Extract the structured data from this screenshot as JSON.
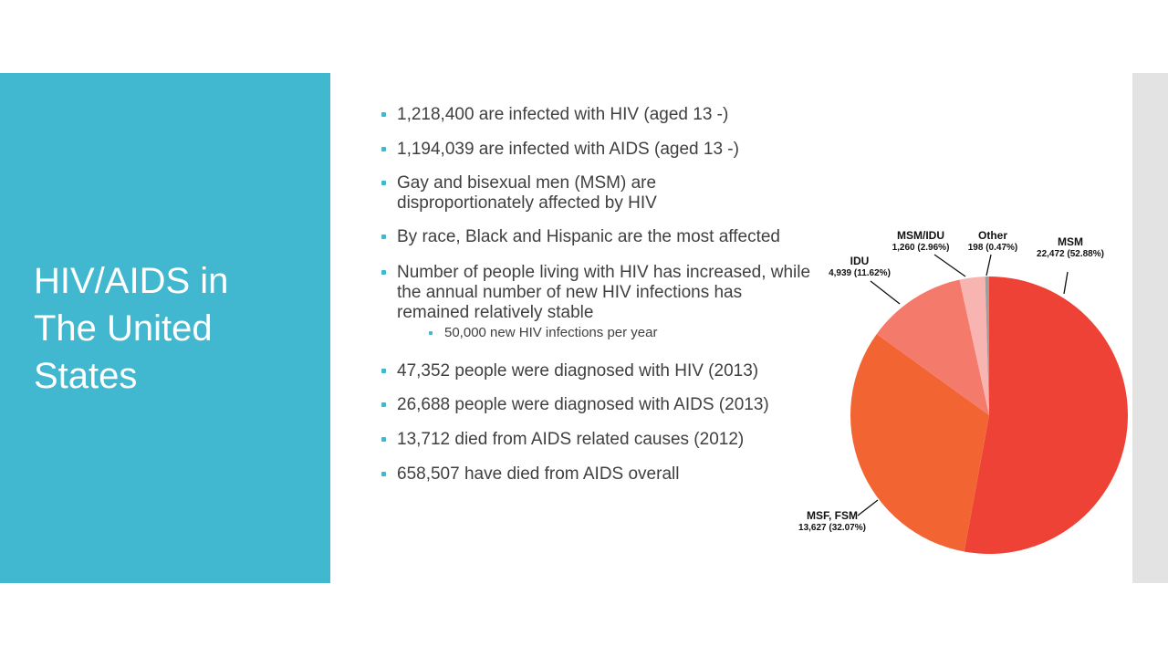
{
  "slide": {
    "title_lines": [
      "HIV/AIDS in",
      "The United",
      "States"
    ]
  },
  "bullets": [
    "1,218,400 are infected with HIV (aged 13 -)",
    "1,194,039 are infected with AIDS (aged 13 -)",
    "Gay and bisexual men (MSM) are disproportionately affected by HIV",
    "By race, Black and Hispanic are the most affected",
    "Number of people living with HIV has increased, while the annual number of new HIV infections has remained relatively stable",
    "47,352 people were diagnosed with HIV (2013)",
    "26,688 people were diagnosed with AIDS (2013)",
    "13,712 died from AIDS related causes (2012)",
    "658,507 have died from AIDS overall"
  ],
  "sub_bullet": "50,000 new HIV infections per year",
  "colors": {
    "accent": "#41b8d0",
    "strip": "#e3e3e3"
  },
  "chart_data": {
    "type": "pie",
    "title": "",
    "slices": [
      {
        "name": "MSM",
        "value": 22472,
        "percent_label": "22,472 (52.88%)",
        "color": "#ef4237"
      },
      {
        "name": "MSF, FSM",
        "value": 13627,
        "percent_label": "13,627 (32.07%)",
        "color": "#f26532"
      },
      {
        "name": "IDU",
        "value": 4939,
        "percent_label": "4,939 (11.62%)",
        "color": "#f47a6c"
      },
      {
        "name": "MSM/IDU",
        "value": 1260,
        "percent_label": "1,260 (2.96%)",
        "color": "#f7b4b0"
      },
      {
        "name": "Other",
        "value": 198,
        "percent_label": "198 (0.47%)",
        "color": "#a09d9c"
      }
    ]
  }
}
